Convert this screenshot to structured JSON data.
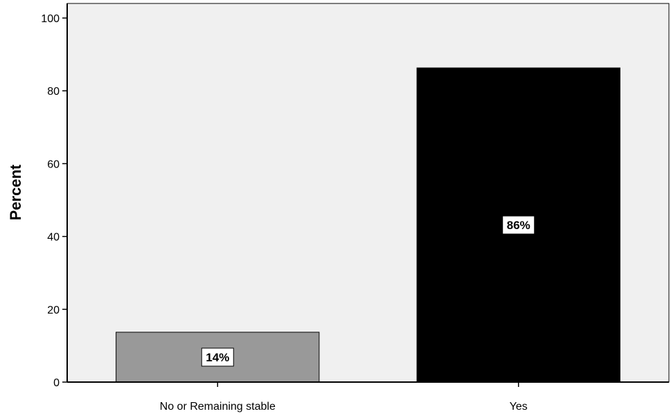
{
  "chart_data": {
    "type": "bar",
    "title": "",
    "xlabel": "",
    "ylabel": "Percent",
    "categories": [
      "No or Remaining stable",
      "Yes"
    ],
    "values": [
      13.7,
      86.3
    ],
    "data_labels": [
      "14%",
      "86%"
    ],
    "bar_colors": [
      "#999999",
      "#000000"
    ],
    "ylim": [
      0,
      104
    ],
    "y_ticks": [
      0,
      20,
      40,
      60,
      80,
      100
    ],
    "grid": false,
    "legend": "none",
    "plot_background": "#f0f0f0"
  }
}
